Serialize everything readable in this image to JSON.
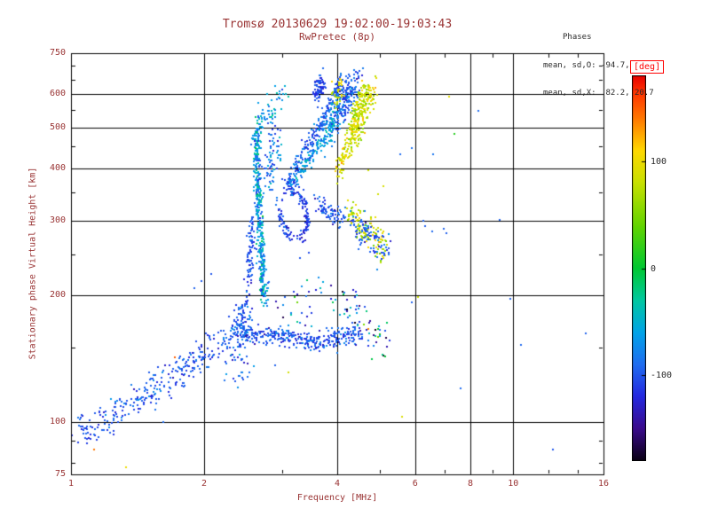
{
  "colors": {
    "background": "#ffffff",
    "text": "#993333",
    "annotation": "#2a2a2a",
    "axis": "#000000",
    "deg": "#ff0000"
  },
  "chart_data": {
    "type": "scatter",
    "title": "Tromsø 20130629 19:02:00-19:03:43",
    "subtitle": "RwPretec (8p)",
    "xlabel": "Frequency [MHz]",
    "ylabel": "Stationary phase Virtual Height [km]",
    "xscale": "log",
    "yscale": "log",
    "xlim": [
      1,
      16
    ],
    "ylim": [
      75,
      750
    ],
    "xticks": [
      1,
      2,
      4,
      6,
      8,
      10,
      16
    ],
    "yticks": [
      75,
      100,
      200,
      300,
      400,
      500,
      600,
      750
    ],
    "xminor": [
      3,
      5,
      7,
      9,
      12,
      14
    ],
    "yminor": [
      80,
      90,
      150,
      250,
      350,
      450,
      550,
      650,
      700
    ],
    "grid": true,
    "stats": {
      "header": "Phases",
      "o_line": "mean, sd,O: -94.7, 18.3",
      "x_line": "mean, sd,X:  82.2, 20.7"
    },
    "colorbar": {
      "label": "[deg]",
      "min": -180,
      "max": 180,
      "ticks": [
        100,
        0,
        -100
      ],
      "stops": [
        [
          -180,
          "#0a0014"
        ],
        [
          -150,
          "#3a0a8c"
        ],
        [
          -120,
          "#2428e0"
        ],
        [
          -90,
          "#1f6df0"
        ],
        [
          -60,
          "#00a4e8"
        ],
        [
          -30,
          "#00c8a0"
        ],
        [
          0,
          "#00c832"
        ],
        [
          40,
          "#64d400"
        ],
        [
          80,
          "#c8e000"
        ],
        [
          110,
          "#ffd800"
        ],
        [
          140,
          "#ff7800"
        ],
        [
          165,
          "#ff3200"
        ],
        [
          180,
          "#e60000"
        ]
      ]
    },
    "traces": [
      {
        "name": "E-trace",
        "path": [
          [
            1.0,
            96
          ],
          [
            1.25,
            103
          ],
          [
            1.45,
            114
          ],
          [
            1.7,
            127
          ],
          [
            1.95,
            143
          ],
          [
            2.15,
            152
          ],
          [
            2.32,
            160
          ]
        ],
        "n": 300,
        "jf": 0.018,
        "jh": 0.045,
        "phase": -100,
        "sd": 14
      },
      {
        "name": "E-cusp",
        "path": [
          [
            2.32,
            158
          ],
          [
            2.42,
            170
          ],
          [
            2.5,
            184
          ]
        ],
        "n": 110,
        "jf": 0.02,
        "jh": 0.055,
        "phase": -97,
        "sd": 16
      },
      {
        "name": "below-band-scatter",
        "path": [
          [
            2.3,
            128
          ],
          [
            2.55,
            140
          ]
        ],
        "n": 28,
        "jf": 0.03,
        "jh": 0.06,
        "phase": -95,
        "sd": 25
      },
      {
        "name": "F-asymptote-column",
        "path": [
          [
            2.73,
            196
          ],
          [
            2.7,
            240
          ],
          [
            2.67,
            300
          ],
          [
            2.645,
            360
          ],
          [
            2.63,
            420
          ],
          [
            2.625,
            470
          ],
          [
            2.66,
            512
          ]
        ],
        "n": 400,
        "jf": 0.011,
        "jh": 0.028,
        "phase": -62,
        "sd": 26
      },
      {
        "name": "F-asymptote-left",
        "path": [
          [
            2.52,
            206
          ],
          [
            2.55,
            252
          ],
          [
            2.575,
            300
          ]
        ],
        "n": 80,
        "jf": 0.01,
        "jh": 0.045,
        "phase": -100,
        "sd": 15
      },
      {
        "name": "F-asymptote-right",
        "path": [
          [
            2.8,
            360
          ],
          [
            2.86,
            425
          ],
          [
            2.92,
            475
          ]
        ],
        "n": 70,
        "jf": 0.02,
        "jh": 0.05,
        "phase": -85,
        "sd": 22
      },
      {
        "name": "spreadF-top",
        "path": [
          [
            2.66,
            500
          ],
          [
            2.8,
            545
          ],
          [
            2.95,
            585
          ],
          [
            3.05,
            608
          ]
        ],
        "n": 55,
        "jf": 0.02,
        "jh": 0.035,
        "phase": -62,
        "sd": 22
      },
      {
        "name": "band-160",
        "path": [
          [
            2.42,
            162
          ],
          [
            3.0,
            160
          ],
          [
            3.5,
            155
          ],
          [
            4.0,
            158
          ],
          [
            4.55,
            162
          ]
        ],
        "n": 340,
        "jf": 0.012,
        "jh": 0.028,
        "phase": -100,
        "sd": 16
      },
      {
        "name": "band-160-ext",
        "path": [
          [
            4.6,
            162
          ],
          [
            5.25,
            158
          ]
        ],
        "n": 26,
        "jf": 0.02,
        "jh": 0.05,
        "phase": -60,
        "sd": 85
      },
      {
        "name": "band-190",
        "path": [
          [
            3.0,
            186
          ],
          [
            3.6,
            198
          ],
          [
            4.2,
            192
          ],
          [
            4.6,
            186
          ]
        ],
        "n": 60,
        "jf": 0.02,
        "jh": 0.07,
        "phase": -88,
        "sd": 55
      },
      {
        "name": "loop",
        "path": [
          [
            2.95,
            325
          ],
          [
            3.0,
            295
          ],
          [
            3.1,
            278
          ],
          [
            3.25,
            272
          ],
          [
            3.38,
            284
          ],
          [
            3.43,
            306
          ],
          [
            3.39,
            330
          ],
          [
            3.28,
            350
          ],
          [
            3.13,
            358
          ]
        ],
        "n": 150,
        "jf": 0.008,
        "jh": 0.022,
        "phase": -110,
        "sd": 12
      },
      {
        "name": "arc-cyan",
        "path": [
          [
            3.12,
            362
          ],
          [
            3.3,
            396
          ],
          [
            3.5,
            430
          ],
          [
            3.66,
            456
          ],
          [
            3.8,
            472
          ]
        ],
        "n": 110,
        "jf": 0.01,
        "jh": 0.026,
        "phase": -64,
        "sd": 20
      },
      {
        "name": "arc-rise",
        "path": [
          [
            3.05,
            356
          ],
          [
            3.3,
            420
          ],
          [
            3.55,
            480
          ],
          [
            3.75,
            532
          ],
          [
            3.9,
            576
          ],
          [
            4.0,
            616
          ],
          [
            4.06,
            648
          ]
        ],
        "n": 190,
        "jf": 0.01,
        "jh": 0.022,
        "phase": -95,
        "sd": 15
      },
      {
        "name": "top-cluster-blue",
        "path": [
          [
            3.98,
            538
          ],
          [
            4.12,
            580
          ],
          [
            4.28,
            612
          ],
          [
            4.4,
            640
          ]
        ],
        "n": 210,
        "jf": 0.02,
        "jh": 0.05,
        "phase": -96,
        "sd": 17
      },
      {
        "name": "top-cluster-cyan",
        "path": [
          [
            3.7,
            462
          ],
          [
            3.85,
            500
          ],
          [
            3.96,
            526
          ]
        ],
        "n": 90,
        "jf": 0.016,
        "jh": 0.04,
        "phase": -70,
        "sd": 20
      },
      {
        "name": "top-left-dense",
        "path": [
          [
            3.55,
            600
          ],
          [
            3.65,
            624
          ],
          [
            3.73,
            642
          ]
        ],
        "n": 70,
        "jf": 0.012,
        "jh": 0.03,
        "phase": -106,
        "sd": 12
      },
      {
        "name": "X-top-cluster",
        "path": [
          [
            4.3,
            470
          ],
          [
            4.44,
            520
          ],
          [
            4.56,
            562
          ],
          [
            4.66,
            592
          ],
          [
            4.78,
            616
          ]
        ],
        "n": 280,
        "jf": 0.02,
        "jh": 0.05,
        "phase": 84,
        "sd": 17
      },
      {
        "name": "X-arc",
        "path": [
          [
            3.98,
            392
          ],
          [
            4.14,
            424
          ],
          [
            4.27,
            452
          ]
        ],
        "n": 60,
        "jf": 0.013,
        "jh": 0.03,
        "phase": 90,
        "sd": 14
      },
      {
        "name": "X-in-blue",
        "path": [
          [
            3.97,
            578
          ],
          [
            4.05,
            620
          ]
        ],
        "n": 30,
        "jf": 0.015,
        "jh": 0.04,
        "phase": 88,
        "sd": 14
      },
      {
        "name": "mid-arc-blue",
        "path": [
          [
            3.6,
            332
          ],
          [
            3.8,
            318
          ],
          [
            4.0,
            306
          ],
          [
            4.22,
            300
          ]
        ],
        "n": 75,
        "jf": 0.012,
        "jh": 0.03,
        "phase": -100,
        "sd": 15
      },
      {
        "name": "mid-X-band",
        "path": [
          [
            4.25,
            312
          ],
          [
            4.55,
            292
          ],
          [
            4.85,
            274
          ],
          [
            5.15,
            263
          ]
        ],
        "n": 120,
        "jf": 0.016,
        "jh": 0.045,
        "phase": 80,
        "sd": 20
      },
      {
        "name": "mid-O-band",
        "path": [
          [
            4.3,
            296
          ],
          [
            4.6,
            279
          ],
          [
            4.9,
            263
          ],
          [
            5.2,
            255
          ]
        ],
        "n": 95,
        "jf": 0.016,
        "jh": 0.04,
        "phase": -94,
        "sd": 18
      }
    ],
    "extra_points": [
      [
        1.13,
        86,
        140
      ],
      [
        1.33,
        78,
        100
      ],
      [
        1.62,
        100,
        -90
      ],
      [
        1.72,
        142,
        150
      ],
      [
        1.9,
        208,
        -95
      ],
      [
        1.97,
        216,
        -98
      ],
      [
        2.08,
        224,
        -100
      ],
      [
        2.9,
        136,
        -95
      ],
      [
        3.1,
        131,
        85
      ],
      [
        3.3,
        245,
        -100
      ],
      [
        3.45,
        252,
        -105
      ],
      [
        4.7,
        395,
        82
      ],
      [
        4.95,
        347,
        85
      ],
      [
        5.08,
        362,
        88
      ],
      [
        5.55,
        432,
        -90
      ],
      [
        5.9,
        446,
        -88
      ],
      [
        5.6,
        103,
        90
      ],
      [
        5.9,
        192,
        -95
      ],
      [
        6.08,
        198,
        82
      ],
      [
        6.25,
        300,
        -95
      ],
      [
        6.33,
        291,
        -96
      ],
      [
        6.55,
        283,
        -92
      ],
      [
        6.95,
        287,
        -95
      ],
      [
        7.05,
        281,
        -96
      ],
      [
        6.6,
        432,
        -85
      ],
      [
        7.15,
        592,
        95
      ],
      [
        7.35,
        482,
        15
      ],
      [
        8.35,
        548,
        -90
      ],
      [
        9.3,
        302,
        -95
      ],
      [
        9.85,
        196,
        -95
      ],
      [
        10.4,
        152,
        -92
      ],
      [
        14.6,
        162,
        -95
      ],
      [
        12.3,
        86,
        -100
      ],
      [
        7.6,
        120,
        -90
      ]
    ]
  }
}
